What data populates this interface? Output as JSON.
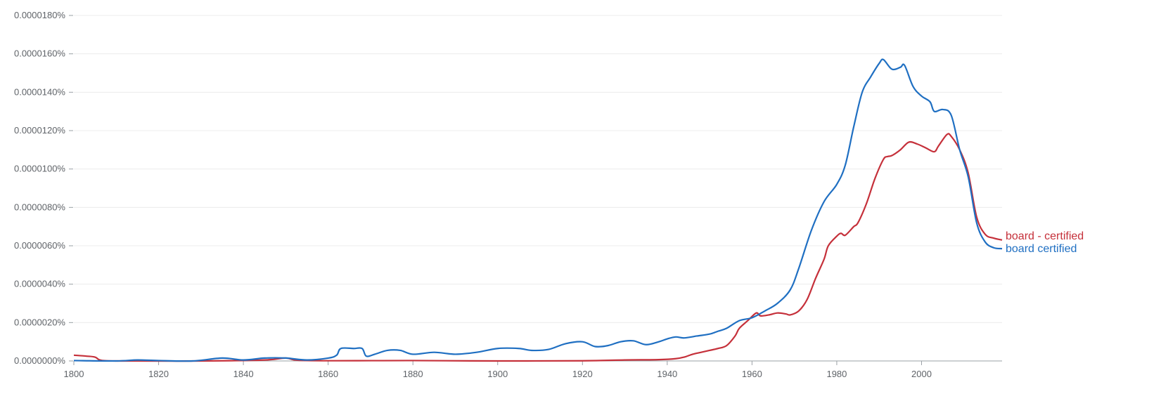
{
  "chart_data": {
    "type": "line",
    "xlim": [
      1800,
      2019
    ],
    "ylim": [
      0,
      1.8e-07
    ],
    "grid": true,
    "x_ticks": [
      "1800",
      "1820",
      "1840",
      "1860",
      "1880",
      "1900",
      "1920",
      "1940",
      "1960",
      "1980",
      "2000"
    ],
    "x_tick_values": [
      1800,
      1820,
      1840,
      1860,
      1880,
      1900,
      1920,
      1940,
      1960,
      1980,
      2000
    ],
    "y_ticks": [
      "0.0000000%",
      "0.0000020%",
      "0.0000040%",
      "0.0000060%",
      "0.0000080%",
      "0.0000100%",
      "0.0000120%",
      "0.0000140%",
      "0.0000160%",
      "0.0000180%"
    ],
    "y_tick_values": [
      0,
      2e-08,
      4e-08,
      6e-08,
      8e-08,
      1e-07,
      1.2e-07,
      1.4e-07,
      1.6e-07,
      1.8e-07
    ],
    "legend_placement": "right, at line ends",
    "series": [
      {
        "name": "board - certified",
        "color": "#c5303a",
        "points": [
          [
            1800,
            0.3
          ],
          [
            1803,
            0.25
          ],
          [
            1805,
            0.2
          ],
          [
            1807,
            0.02
          ],
          [
            1815,
            0.0
          ],
          [
            1830,
            0.0
          ],
          [
            1845,
            0.05
          ],
          [
            1850,
            0.15
          ],
          [
            1855,
            0.02
          ],
          [
            1880,
            0.02
          ],
          [
            1900,
            0.0
          ],
          [
            1920,
            0.01
          ],
          [
            1930,
            0.05
          ],
          [
            1938,
            0.07
          ],
          [
            1942,
            0.12
          ],
          [
            1944,
            0.2
          ],
          [
            1946,
            0.35
          ],
          [
            1948,
            0.45
          ],
          [
            1950,
            0.55
          ],
          [
            1952,
            0.65
          ],
          [
            1954,
            0.8
          ],
          [
            1956,
            1.3
          ],
          [
            1957,
            1.7
          ],
          [
            1959,
            2.1
          ],
          [
            1961,
            2.5
          ],
          [
            1962,
            2.35
          ],
          [
            1964,
            2.4
          ],
          [
            1966,
            2.5
          ],
          [
            1968,
            2.45
          ],
          [
            1969,
            2.4
          ],
          [
            1971,
            2.6
          ],
          [
            1973,
            3.2
          ],
          [
            1975,
            4.3
          ],
          [
            1977,
            5.3
          ],
          [
            1978,
            6.0
          ],
          [
            1980,
            6.5
          ],
          [
            1981,
            6.65
          ],
          [
            1982,
            6.55
          ],
          [
            1984,
            7.0
          ],
          [
            1985,
            7.2
          ],
          [
            1987,
            8.2
          ],
          [
            1989,
            9.5
          ],
          [
            1991,
            10.5
          ],
          [
            1992,
            10.65
          ],
          [
            1993,
            10.7
          ],
          [
            1995,
            11.0
          ],
          [
            1997,
            11.4
          ],
          [
            1999,
            11.3
          ],
          [
            2001,
            11.1
          ],
          [
            2003,
            10.9
          ],
          [
            2004,
            11.2
          ],
          [
            2006,
            11.8
          ],
          [
            2007,
            11.7
          ],
          [
            2009,
            11.0
          ],
          [
            2011,
            9.8
          ],
          [
            2013,
            7.5
          ],
          [
            2015,
            6.6
          ],
          [
            2017,
            6.4
          ],
          [
            2019,
            6.3
          ]
        ]
      },
      {
        "name": "board certified",
        "color": "#1f6fc2",
        "points": [
          [
            1800,
            0.02
          ],
          [
            1810,
            0.0
          ],
          [
            1815,
            0.05
          ],
          [
            1820,
            0.02
          ],
          [
            1828,
            0.0
          ],
          [
            1835,
            0.15
          ],
          [
            1840,
            0.05
          ],
          [
            1845,
            0.15
          ],
          [
            1850,
            0.15
          ],
          [
            1855,
            0.05
          ],
          [
            1860,
            0.15
          ],
          [
            1862,
            0.3
          ],
          [
            1863,
            0.65
          ],
          [
            1866,
            0.65
          ],
          [
            1868,
            0.65
          ],
          [
            1869,
            0.25
          ],
          [
            1871,
            0.35
          ],
          [
            1874,
            0.55
          ],
          [
            1877,
            0.55
          ],
          [
            1880,
            0.35
          ],
          [
            1885,
            0.45
          ],
          [
            1890,
            0.35
          ],
          [
            1895,
            0.45
          ],
          [
            1900,
            0.65
          ],
          [
            1905,
            0.65
          ],
          [
            1908,
            0.55
          ],
          [
            1912,
            0.6
          ],
          [
            1916,
            0.9
          ],
          [
            1920,
            1.0
          ],
          [
            1923,
            0.75
          ],
          [
            1926,
            0.8
          ],
          [
            1929,
            1.0
          ],
          [
            1932,
            1.05
          ],
          [
            1935,
            0.85
          ],
          [
            1938,
            1.0
          ],
          [
            1940,
            1.15
          ],
          [
            1942,
            1.25
          ],
          [
            1944,
            1.2
          ],
          [
            1947,
            1.3
          ],
          [
            1950,
            1.4
          ],
          [
            1952,
            1.55
          ],
          [
            1954,
            1.7
          ],
          [
            1957,
            2.1
          ],
          [
            1960,
            2.25
          ],
          [
            1963,
            2.6
          ],
          [
            1966,
            3.0
          ],
          [
            1969,
            3.7
          ],
          [
            1971,
            4.8
          ],
          [
            1974,
            6.8
          ],
          [
            1977,
            8.3
          ],
          [
            1980,
            9.2
          ],
          [
            1982,
            10.2
          ],
          [
            1984,
            12.2
          ],
          [
            1986,
            14.0
          ],
          [
            1988,
            14.8
          ],
          [
            1990,
            15.5
          ],
          [
            1991,
            15.7
          ],
          [
            1993,
            15.2
          ],
          [
            1995,
            15.3
          ],
          [
            1996,
            15.4
          ],
          [
            1998,
            14.3
          ],
          [
            2000,
            13.8
          ],
          [
            2002,
            13.5
          ],
          [
            2003,
            13.0
          ],
          [
            2005,
            13.1
          ],
          [
            2007,
            12.8
          ],
          [
            2009,
            11.0
          ],
          [
            2011,
            9.6
          ],
          [
            2013,
            7.2
          ],
          [
            2015,
            6.2
          ],
          [
            2017,
            5.9
          ],
          [
            2019,
            5.85
          ]
        ],
        "value_scale_note": ""
      }
    ]
  }
}
